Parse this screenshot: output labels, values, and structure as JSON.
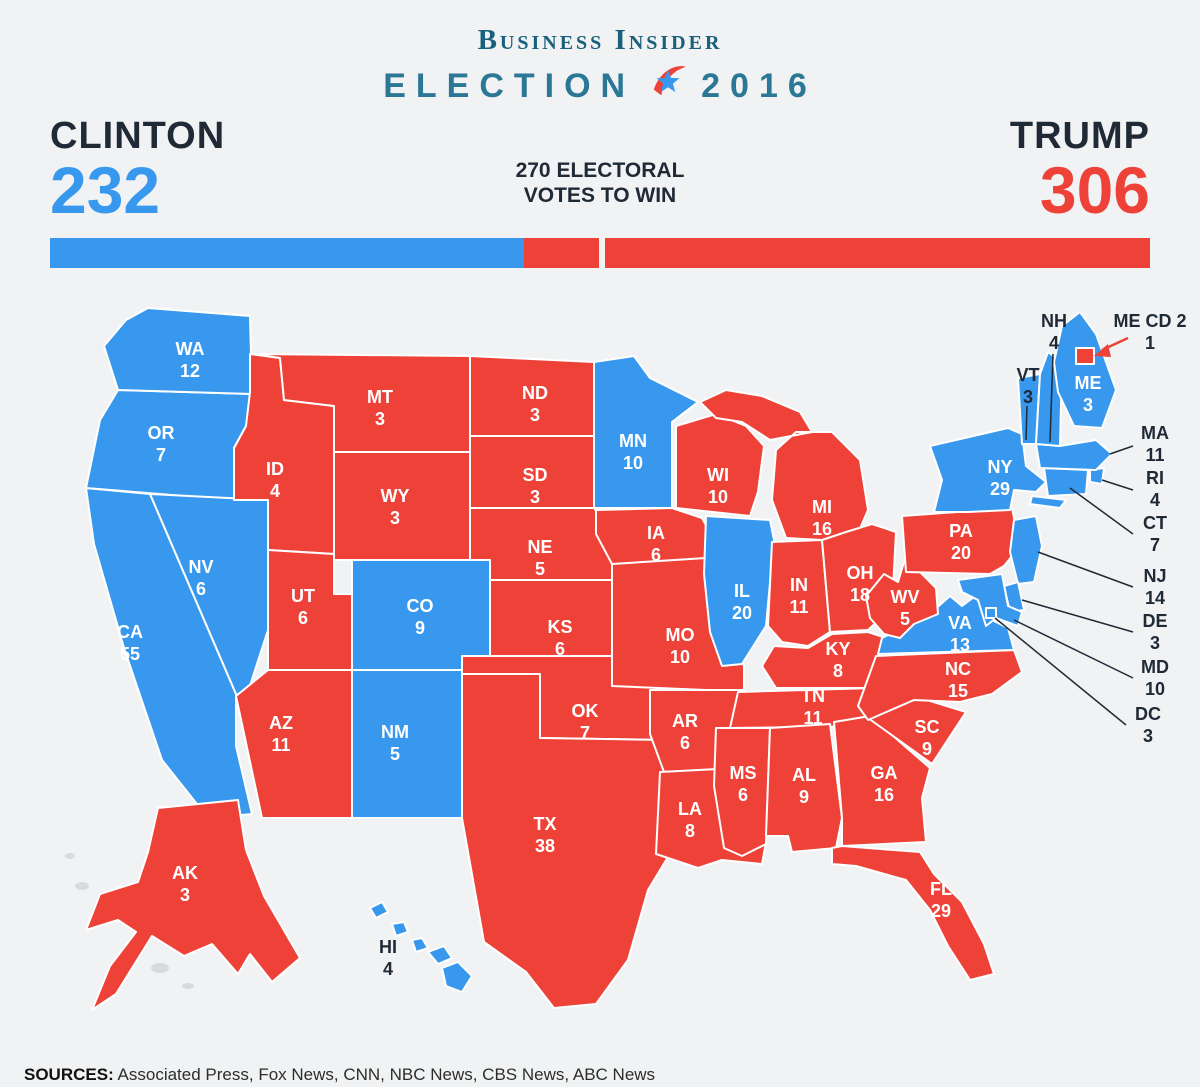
{
  "header": {
    "brand": "Business Insider",
    "title_word": "ELECTION",
    "title_year": "2016"
  },
  "scoreboard": {
    "left_name": "CLINTON",
    "left_votes": "232",
    "right_name": "TRUMP",
    "right_votes": "306",
    "center_line1": "270 ELECTORAL",
    "center_line2": "VOTES TO WIN"
  },
  "bar": {
    "total": 538,
    "clinton": 232,
    "trump": 306,
    "threshold": 270
  },
  "colors": {
    "dem": "#3798EE",
    "rep": "#EE4239",
    "background": "#F0F2F3",
    "ink": "#1F2A36",
    "brand_teal": "#19607C",
    "title_teal": "#2B7796",
    "land_other": "#D8DBDD",
    "bar_divider": "#F0F2F3"
  },
  "map": {
    "states": [
      {
        "id": "CA",
        "abbr": "CA",
        "ev": 55,
        "party": "dem"
      },
      {
        "id": "OR",
        "abbr": "OR",
        "ev": 7,
        "party": "dem"
      },
      {
        "id": "WA",
        "abbr": "WA",
        "ev": 12,
        "party": "dem"
      },
      {
        "id": "NV",
        "abbr": "NV",
        "ev": 6,
        "party": "dem"
      },
      {
        "id": "ID",
        "abbr": "ID",
        "ev": 4,
        "party": "rep"
      },
      {
        "id": "MT",
        "abbr": "MT",
        "ev": 3,
        "party": "rep"
      },
      {
        "id": "WY",
        "abbr": "WY",
        "ev": 3,
        "party": "rep"
      },
      {
        "id": "UT",
        "abbr": "UT",
        "ev": 6,
        "party": "rep"
      },
      {
        "id": "CO",
        "abbr": "CO",
        "ev": 9,
        "party": "dem"
      },
      {
        "id": "AZ",
        "abbr": "AZ",
        "ev": 11,
        "party": "rep"
      },
      {
        "id": "NM",
        "abbr": "NM",
        "ev": 5,
        "party": "dem"
      },
      {
        "id": "ND",
        "abbr": "ND",
        "ev": 3,
        "party": "rep"
      },
      {
        "id": "SD",
        "abbr": "SD",
        "ev": 3,
        "party": "rep"
      },
      {
        "id": "NE",
        "abbr": "NE",
        "ev": 5,
        "party": "rep"
      },
      {
        "id": "KS",
        "abbr": "KS",
        "ev": 6,
        "party": "rep"
      },
      {
        "id": "OK",
        "abbr": "OK",
        "ev": 7,
        "party": "rep"
      },
      {
        "id": "TX",
        "abbr": "TX",
        "ev": 38,
        "party": "rep"
      },
      {
        "id": "MN",
        "abbr": "MN",
        "ev": 10,
        "party": "dem"
      },
      {
        "id": "IA",
        "abbr": "IA",
        "ev": 6,
        "party": "rep"
      },
      {
        "id": "MO",
        "abbr": "MO",
        "ev": 10,
        "party": "rep"
      },
      {
        "id": "AR",
        "abbr": "AR",
        "ev": 6,
        "party": "rep"
      },
      {
        "id": "LA",
        "abbr": "LA",
        "ev": 8,
        "party": "rep"
      },
      {
        "id": "WI",
        "abbr": "WI",
        "ev": 10,
        "party": "rep"
      },
      {
        "id": "IL",
        "abbr": "IL",
        "ev": 20,
        "party": "dem"
      },
      {
        "id": "MI",
        "abbr": "MI",
        "ev": 16,
        "party": "rep"
      },
      {
        "id": "IN",
        "abbr": "IN",
        "ev": 11,
        "party": "rep"
      },
      {
        "id": "OH",
        "abbr": "OH",
        "ev": 18,
        "party": "rep"
      },
      {
        "id": "KY",
        "abbr": "KY",
        "ev": 8,
        "party": "rep"
      },
      {
        "id": "TN",
        "abbr": "TN",
        "ev": 11,
        "party": "rep"
      },
      {
        "id": "MS",
        "abbr": "MS",
        "ev": 6,
        "party": "rep"
      },
      {
        "id": "AL",
        "abbr": "AL",
        "ev": 9,
        "party": "rep"
      },
      {
        "id": "GA",
        "abbr": "GA",
        "ev": 16,
        "party": "rep"
      },
      {
        "id": "SC",
        "abbr": "SC",
        "ev": 9,
        "party": "rep"
      },
      {
        "id": "NC",
        "abbr": "NC",
        "ev": 15,
        "party": "rep"
      },
      {
        "id": "VA",
        "abbr": "VA",
        "ev": 13,
        "party": "dem"
      },
      {
        "id": "WV",
        "abbr": "WV",
        "ev": 5,
        "party": "rep"
      },
      {
        "id": "PA",
        "abbr": "PA",
        "ev": 20,
        "party": "rep"
      },
      {
        "id": "NY",
        "abbr": "NY",
        "ev": 29,
        "party": "dem"
      },
      {
        "id": "NJ",
        "abbr": "NJ",
        "ev": 14,
        "party": "dem",
        "callout": true
      },
      {
        "id": "DE",
        "abbr": "DE",
        "ev": 3,
        "party": "dem",
        "callout": true
      },
      {
        "id": "MD",
        "abbr": "MD",
        "ev": 10,
        "party": "dem",
        "callout": true
      },
      {
        "id": "DC",
        "abbr": "DC",
        "ev": 3,
        "party": "dem",
        "callout": true
      },
      {
        "id": "CT",
        "abbr": "CT",
        "ev": 7,
        "party": "dem",
        "callout": true
      },
      {
        "id": "RI",
        "abbr": "RI",
        "ev": 4,
        "party": "dem",
        "callout": true
      },
      {
        "id": "MA",
        "abbr": "MA",
        "ev": 11,
        "party": "dem",
        "callout": true
      },
      {
        "id": "VT",
        "abbr": "VT",
        "ev": 3,
        "party": "dem",
        "callout": true
      },
      {
        "id": "NH",
        "abbr": "NH",
        "ev": 4,
        "party": "dem",
        "callout": true
      },
      {
        "id": "ME",
        "abbr": "ME",
        "ev": 3,
        "party": "dem"
      },
      {
        "id": "FL",
        "abbr": "FL",
        "ev": 29,
        "party": "rep"
      },
      {
        "id": "AK",
        "abbr": "AK",
        "ev": 3,
        "party": "rep"
      },
      {
        "id": "HI",
        "abbr": "HI",
        "ev": 4,
        "party": "dem"
      },
      {
        "id": "ME2",
        "abbr": "ME CD 2",
        "ev": 1,
        "party": "rep",
        "callout": true
      }
    ]
  },
  "footer": {
    "label": "SOURCES:",
    "text": "Associated Press, Fox News, CNN, NBC News, CBS News, ABC News"
  }
}
